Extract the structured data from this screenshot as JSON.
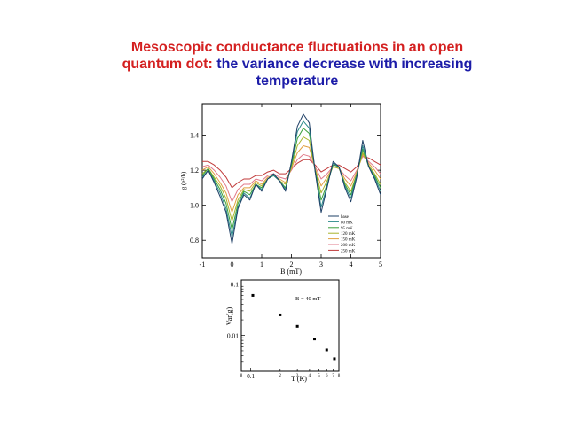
{
  "title": {
    "line1": "Mesoscopic conductance fluctuations  in an open",
    "line2_red": "quantum dot:",
    "line2_blue": " the variance decrease with increasing",
    "line3": "temperature"
  },
  "colors": {
    "title_red": "#d42020",
    "title_blue": "#1c1ca8"
  },
  "chart_data": [
    {
      "type": "line",
      "title": "",
      "xlabel": "B (mT)",
      "ylabel": "g (e²/h)",
      "xlim": [
        -1,
        5
      ],
      "ylim": [
        0.7,
        1.58
      ],
      "x_ticks": [
        "-1",
        "0",
        "1",
        "2",
        "3",
        "4",
        "5"
      ],
      "y_ticks": [
        "0.8",
        "1.0",
        "1.2",
        "1.4"
      ],
      "legend_position": "lower-right",
      "x": [
        -1.0,
        -0.8,
        -0.6,
        -0.4,
        -0.2,
        0.0,
        0.2,
        0.4,
        0.6,
        0.8,
        1.0,
        1.2,
        1.4,
        1.6,
        1.8,
        2.0,
        2.2,
        2.4,
        2.6,
        2.8,
        3.0,
        3.2,
        3.4,
        3.6,
        3.8,
        4.0,
        4.2,
        4.4,
        4.6,
        4.8,
        5.0
      ],
      "series": [
        {
          "name": "base",
          "color": "#1e3f66",
          "values": [
            1.15,
            1.2,
            1.13,
            1.05,
            0.96,
            0.78,
            0.98,
            1.06,
            1.03,
            1.12,
            1.08,
            1.15,
            1.18,
            1.14,
            1.08,
            1.25,
            1.45,
            1.52,
            1.47,
            1.19,
            0.96,
            1.1,
            1.25,
            1.22,
            1.1,
            1.02,
            1.16,
            1.37,
            1.22,
            1.15,
            1.06
          ]
        },
        {
          "name": "80 mK",
          "color": "#2a8a8a",
          "values": [
            1.16,
            1.2,
            1.14,
            1.07,
            0.98,
            0.82,
            0.99,
            1.07,
            1.04,
            1.12,
            1.09,
            1.15,
            1.17,
            1.14,
            1.09,
            1.24,
            1.42,
            1.48,
            1.44,
            1.19,
            0.99,
            1.11,
            1.24,
            1.22,
            1.11,
            1.04,
            1.17,
            1.34,
            1.22,
            1.16,
            1.08
          ]
        },
        {
          "name": "95 mK",
          "color": "#3aa03a",
          "values": [
            1.17,
            1.21,
            1.15,
            1.09,
            1.01,
            0.86,
            1.01,
            1.08,
            1.06,
            1.12,
            1.1,
            1.15,
            1.17,
            1.14,
            1.1,
            1.23,
            1.38,
            1.44,
            1.41,
            1.2,
            1.03,
            1.12,
            1.23,
            1.22,
            1.12,
            1.06,
            1.18,
            1.32,
            1.22,
            1.17,
            1.1
          ]
        },
        {
          "name": "120 mK",
          "color": "#a8b42a",
          "values": [
            1.18,
            1.21,
            1.16,
            1.11,
            1.04,
            0.91,
            1.03,
            1.09,
            1.08,
            1.13,
            1.11,
            1.15,
            1.17,
            1.14,
            1.12,
            1.22,
            1.34,
            1.39,
            1.37,
            1.2,
            1.07,
            1.14,
            1.22,
            1.21,
            1.13,
            1.08,
            1.18,
            1.3,
            1.23,
            1.18,
            1.12
          ]
        },
        {
          "name": "150 mK",
          "color": "#e0a040",
          "values": [
            1.2,
            1.22,
            1.18,
            1.13,
            1.07,
            0.96,
            1.06,
            1.1,
            1.1,
            1.14,
            1.12,
            1.16,
            1.17,
            1.15,
            1.13,
            1.21,
            1.3,
            1.34,
            1.33,
            1.21,
            1.11,
            1.16,
            1.22,
            1.21,
            1.15,
            1.11,
            1.19,
            1.29,
            1.24,
            1.2,
            1.15
          ]
        },
        {
          "name": "200 mK",
          "color": "#e07a8a",
          "values": [
            1.22,
            1.23,
            1.2,
            1.16,
            1.11,
            1.02,
            1.09,
            1.12,
            1.12,
            1.15,
            1.14,
            1.17,
            1.18,
            1.16,
            1.15,
            1.2,
            1.26,
            1.29,
            1.28,
            1.22,
            1.15,
            1.18,
            1.22,
            1.21,
            1.17,
            1.14,
            1.2,
            1.28,
            1.25,
            1.22,
            1.18
          ]
        },
        {
          "name": "250 mK",
          "color": "#c03a3a",
          "values": [
            1.25,
            1.25,
            1.23,
            1.2,
            1.16,
            1.1,
            1.13,
            1.15,
            1.15,
            1.17,
            1.17,
            1.19,
            1.2,
            1.18,
            1.18,
            1.21,
            1.24,
            1.26,
            1.26,
            1.23,
            1.19,
            1.21,
            1.23,
            1.23,
            1.21,
            1.19,
            1.22,
            1.28,
            1.27,
            1.25,
            1.23
          ]
        }
      ]
    },
    {
      "type": "scatter",
      "title": "",
      "xlabel": "T (K)",
      "ylabel": "Var(g)",
      "xscale": "log",
      "yscale": "log",
      "xlim": [
        0.08,
        0.8
      ],
      "ylim": [
        0.002,
        0.12
      ],
      "x_ticks": [
        "8",
        "0.1",
        "2",
        "3",
        "4",
        "5",
        "6",
        "7",
        "8"
      ],
      "y_ticks": [
        "0.1",
        "0.01"
      ],
      "annotation": "B = 40 mT",
      "x": [
        0.105,
        0.2,
        0.3,
        0.45,
        0.6,
        0.72
      ],
      "y": [
        0.06,
        0.025,
        0.015,
        0.0085,
        0.0052,
        0.0035
      ]
    }
  ]
}
